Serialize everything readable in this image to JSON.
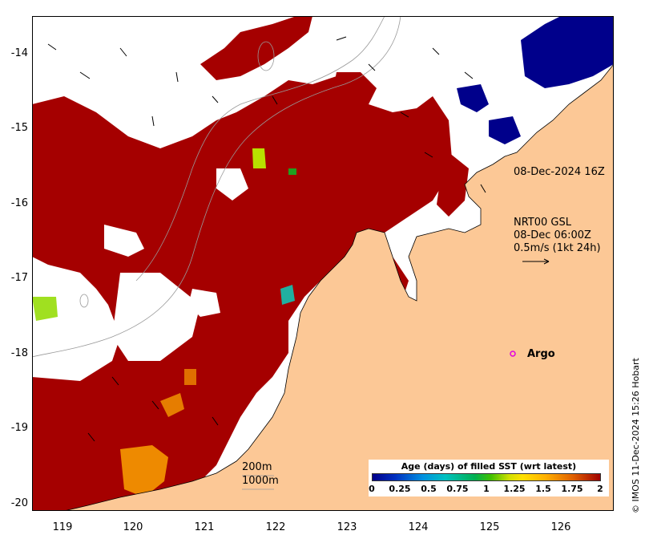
{
  "map": {
    "y_ticks": [
      "-14",
      "-15",
      "-16",
      "-17",
      "-18",
      "-19",
      "-20"
    ],
    "x_ticks": [
      "119",
      "120",
      "121",
      "122",
      "123",
      "124",
      "125",
      "126"
    ],
    "colors": {
      "land": "#fcc896",
      "sst_recent": "#a50000",
      "cloud_gap": "#ffffff",
      "old_data": "#00008b",
      "contour": "#999999"
    },
    "annotations": {
      "timestamp": "08-Dec-2024 16Z",
      "current_line1": "NRT00 GSL",
      "current_line2": "08-Dec 06:00Z",
      "current_line3": "0.5m/s (1kt 24h)",
      "argo_label": "Argo",
      "isobath_200": "200m",
      "isobath_1000": "1000m"
    },
    "legend": {
      "title": "Age (days) of filled SST (wrt latest)",
      "ticks": [
        "0",
        "0.25",
        "0.5",
        "0.75",
        "1",
        "1.25",
        "1.5",
        "1.75",
        "2"
      ]
    },
    "credit": "© IMOS 11-Dec-2024 15:26 Hobart"
  }
}
